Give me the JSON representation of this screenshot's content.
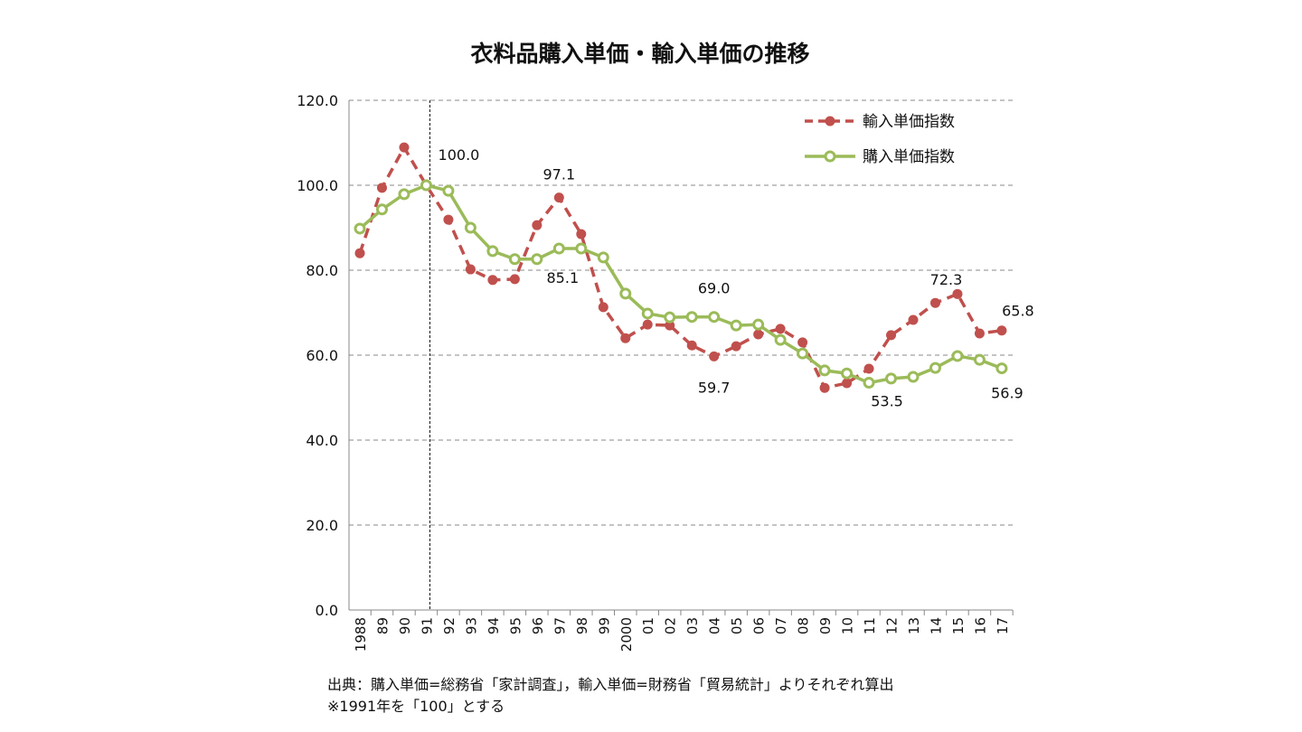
{
  "chart_data": {
    "type": "line",
    "title": "衣料品購入単価・輸入単価の推移",
    "categories": [
      "1988",
      "89",
      "90",
      "91",
      "92",
      "93",
      "94",
      "95",
      "96",
      "97",
      "98",
      "99",
      "2000",
      "01",
      "02",
      "03",
      "04",
      "05",
      "06",
      "07",
      "08",
      "09",
      "10",
      "11",
      "12",
      "13",
      "14",
      "15",
      "16",
      "17"
    ],
    "ylim": [
      0,
      120
    ],
    "yticks": [
      "0.0",
      "20.0",
      "40.0",
      "60.0",
      "80.0",
      "100.0",
      "120.0"
    ],
    "grid": "horizontal dashed",
    "legend_position": "top-right",
    "reference_line": "91",
    "series": [
      {
        "name": "輸入単価指数",
        "color": "#c0504d",
        "style": "dashed",
        "marker": "filled-circle",
        "values": [
          84.0,
          99.4,
          108.9,
          100.0,
          91.9,
          80.2,
          77.7,
          77.9,
          90.6,
          97.1,
          88.5,
          71.3,
          64.0,
          67.2,
          67.0,
          62.3,
          59.7,
          62.1,
          64.9,
          66.2,
          63.0,
          52.3,
          53.4,
          56.8,
          64.7,
          68.3,
          72.3,
          74.4,
          65.1,
          65.8
        ]
      },
      {
        "name": "購入単価指数",
        "color": "#9bbb59",
        "style": "solid",
        "marker": "open-circle",
        "values": [
          89.8,
          94.3,
          97.9,
          100.0,
          98.7,
          90.0,
          84.5,
          82.6,
          82.6,
          85.1,
          85.1,
          83.0,
          74.5,
          69.8,
          68.9,
          69.0,
          69.0,
          67.0,
          67.2,
          63.6,
          60.4,
          56.4,
          55.7,
          53.5,
          54.5,
          54.9,
          57.0,
          59.8,
          58.9,
          56.9
        ]
      }
    ],
    "annotations": [
      {
        "text": "100.0",
        "category": "91",
        "value": 100.0
      },
      {
        "text": "97.1",
        "category": "97",
        "value": 97.1
      },
      {
        "text": "85.1",
        "category": "97",
        "value": 85.1
      },
      {
        "text": "69.0",
        "category": "04",
        "value": 69.0
      },
      {
        "text": "59.7",
        "category": "04",
        "value": 59.7
      },
      {
        "text": "53.5",
        "category": "11",
        "value": 53.5
      },
      {
        "text": "72.3",
        "category": "14",
        "value": 72.3
      },
      {
        "text": "65.8",
        "category": "17",
        "value": 65.8
      },
      {
        "text": "56.9",
        "category": "17",
        "value": 56.9
      }
    ]
  },
  "source": {
    "line1": "出典：購入単価=総務省「家計調査」，輸入単価=財務省「貿易統計」よりそれぞれ算出",
    "line2": "※1991年を「100」とする"
  }
}
